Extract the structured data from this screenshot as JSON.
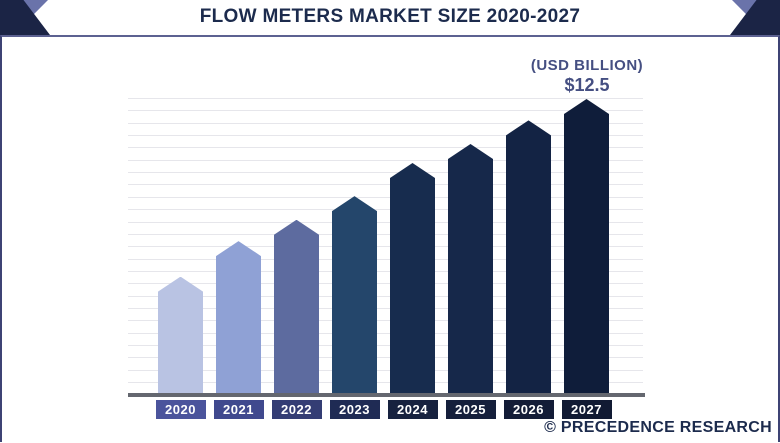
{
  "header": {
    "title": "FLOW METERS MARKET SIZE 2020-2027"
  },
  "annotation": {
    "unit_label": "(USD BILLION)",
    "value_label": "$12.5"
  },
  "footer": {
    "credit": "© PRECEDENCE RESEARCH"
  },
  "chart_data": {
    "type": "bar",
    "title": "Flow Meters Market Size 2020-2027",
    "unit": "USD Billion",
    "categories": [
      "2020",
      "2021",
      "2022",
      "2023",
      "2024",
      "2025",
      "2026",
      "2027"
    ],
    "values": [
      5.0,
      6.5,
      7.4,
      8.4,
      9.8,
      10.6,
      11.6,
      12.5
    ],
    "labeled_points": [
      {
        "category": "2027",
        "label": "$12.5"
      }
    ],
    "ylim": [
      0,
      12.5
    ],
    "xlabel": "",
    "ylabel": "",
    "grid": true,
    "legend": "none",
    "bar_shape": "upward-arrow-pentagon",
    "bar_colors": [
      "#b9c3e3",
      "#8fa1d5",
      "#5d6b9f",
      "#24466b",
      "#172c4e",
      "#16284a",
      "#132344",
      "#0f1d3a"
    ],
    "label_box_colors": [
      "#4b549c",
      "#40498e",
      "#343d74",
      "#1f2b54",
      "#17223f",
      "#151f3b",
      "#131c37",
      "#111a33"
    ]
  },
  "colors": {
    "title_text": "#1c2b4d",
    "annotation_text": "#454f82",
    "gridline": "#e6e6eb",
    "axis_line": "#64676f",
    "panel_border": "#5c6191",
    "panel_side": "#3d4374",
    "corner_navy": "#1b2445",
    "corner_slate": "#6a73aa",
    "year_text": "#ffffff"
  }
}
